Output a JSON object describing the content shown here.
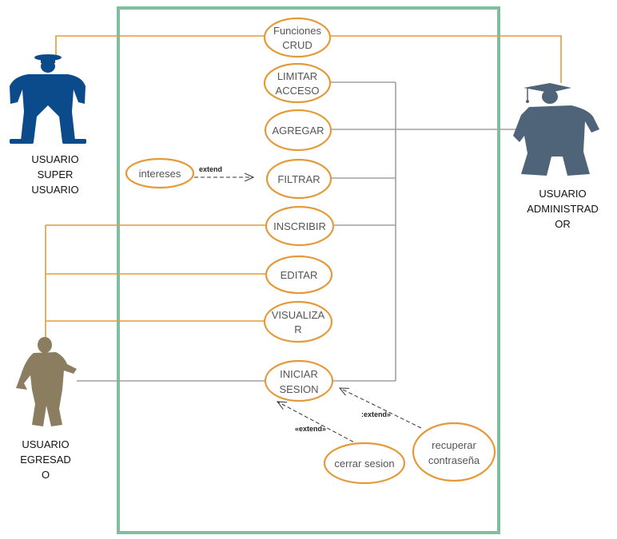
{
  "colors": {
    "system_border": "#7fbf9e",
    "usecase_stroke": "#e59a3a",
    "assoc_orange": "#e59a3a",
    "assoc_gray": "#a0a0a0",
    "actor_super": "#0b4a8b",
    "actor_admin": "#4f6478",
    "actor_egresado": "#8b7d5f"
  },
  "use_cases": [
    {
      "id": "crud",
      "lines": [
        "Funciones",
        "CRUD"
      ]
    },
    {
      "id": "limitar",
      "lines": [
        "LIMITAR",
        "ACCESO"
      ]
    },
    {
      "id": "agregar",
      "lines": [
        "AGREGAR"
      ]
    },
    {
      "id": "filtrar",
      "lines": [
        "FILTRAR"
      ]
    },
    {
      "id": "inscribir",
      "lines": [
        "INSCRIBIR"
      ]
    },
    {
      "id": "editar",
      "lines": [
        "EDITAR"
      ]
    },
    {
      "id": "visualizar",
      "lines": [
        "VISUALIZA",
        "R"
      ]
    },
    {
      "id": "iniciar",
      "lines": [
        "INICIAR",
        "SESION"
      ]
    },
    {
      "id": "intereses",
      "lines": [
        "intereses"
      ]
    },
    {
      "id": "cerrar",
      "lines": [
        "cerrar sesion"
      ]
    },
    {
      "id": "recuperar",
      "lines": [
        "recuperar",
        "contraseña"
      ]
    }
  ],
  "actors": [
    {
      "id": "super",
      "lines": [
        "USUARIO",
        "SUPER",
        "USUARIO"
      ],
      "icon": "person-silhouette-icon"
    },
    {
      "id": "admin",
      "lines": [
        "USUARIO",
        "ADMINISTRAD",
        "OR"
      ],
      "icon": "graduate-silhouette-icon"
    },
    {
      "id": "egresado",
      "lines": [
        "USUARIO",
        "EGRESAD",
        "O"
      ],
      "icon": "walking-person-silhouette-icon"
    }
  ],
  "extend_labels": {
    "intereses_filtrar": "extend",
    "recuperar_iniciar": ":extend»",
    "cerrar_iniciar": "«extend»"
  }
}
